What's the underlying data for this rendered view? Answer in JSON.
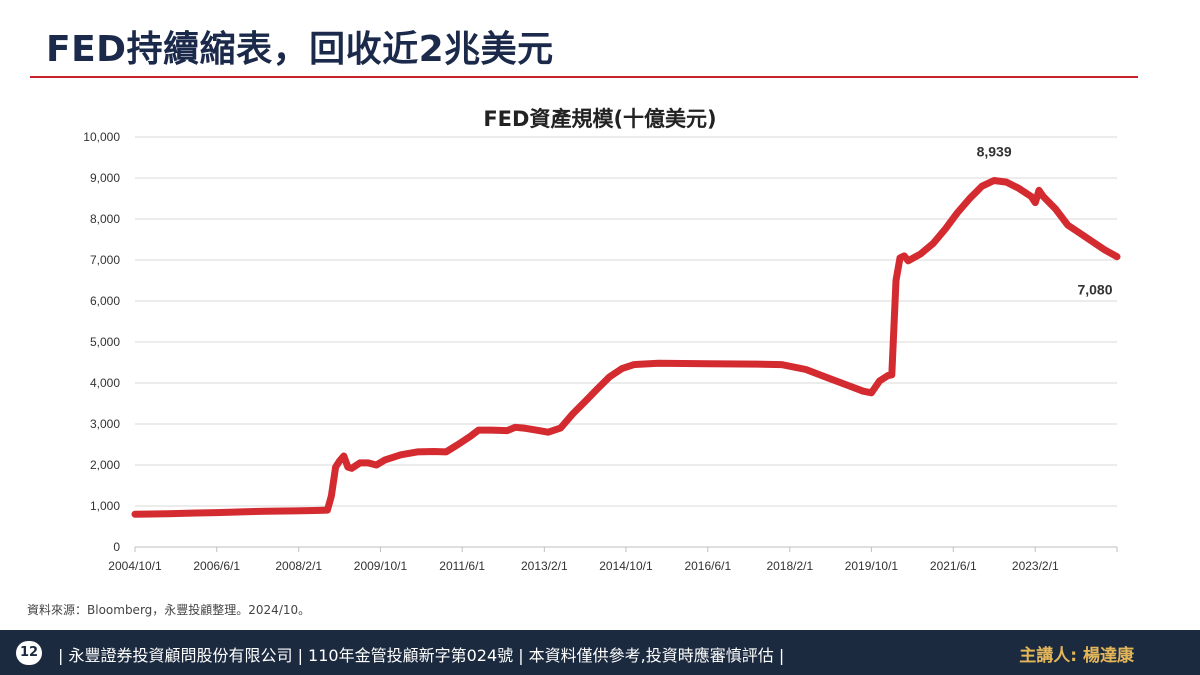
{
  "slide": {
    "title": "FED持續縮表，回收近2兆美元",
    "source_note": "資料來源：Bloomberg，永豐投顧整理。2024/10。",
    "page_number": "12",
    "footer_text": "| 永豐證券投資顧問股份有限公司 | 110年金管投顧新字第024號 | 本資料僅供參考,投資時應審慎評估 |",
    "speaker": "主講人: 楊達康"
  },
  "colors": {
    "accent_red": "#c8232c",
    "line_red": "#d42b30",
    "navy": "#1b2a3f",
    "speaker_gold": "#e3b65a"
  },
  "chart_data": {
    "type": "line",
    "title": "FED資產規模(十億美元)",
    "xlabel": "",
    "ylabel": "",
    "ylim": [
      0,
      10000
    ],
    "yticks": [
      0,
      1000,
      2000,
      3000,
      4000,
      5000,
      6000,
      7000,
      8000,
      9000,
      10000
    ],
    "ytick_labels": [
      "0",
      "1,000",
      "2,000",
      "3,000",
      "4,000",
      "5,000",
      "6,000",
      "7,000",
      "8,000",
      "9,000",
      "10,000"
    ],
    "xlim": [
      "2004-10-01",
      "2024-10-01"
    ],
    "xticks": [
      "2004-10-01",
      "2006-06-01",
      "2008-02-01",
      "2009-10-01",
      "2011-06-01",
      "2013-02-01",
      "2014-10-01",
      "2016-06-01",
      "2018-02-01",
      "2019-10-01",
      "2021-06-01",
      "2023-02-01"
    ],
    "xtick_labels": [
      "2004/10/1",
      "2006/6/1",
      "2008/2/1",
      "2009/10/1",
      "2011/6/1",
      "2013/2/1",
      "2014/10/1",
      "2016/6/1",
      "2018/2/1",
      "2019/10/1",
      "2021/6/1",
      "2023/2/1"
    ],
    "grid": true,
    "series": [
      {
        "points": [
          [
            "2004-10-01",
            800
          ],
          [
            "2005-06-01",
            810
          ],
          [
            "2006-01-01",
            830
          ],
          [
            "2006-06-01",
            840
          ],
          [
            "2007-01-01",
            860
          ],
          [
            "2007-06-01",
            870
          ],
          [
            "2008-01-01",
            880
          ],
          [
            "2008-06-01",
            890
          ],
          [
            "2008-09-01",
            900
          ],
          [
            "2008-10-01",
            1250
          ],
          [
            "2008-11-01",
            1950
          ],
          [
            "2008-12-01",
            2100
          ],
          [
            "2009-01-01",
            2220
          ],
          [
            "2009-02-01",
            1950
          ],
          [
            "2009-03-01",
            1920
          ],
          [
            "2009-05-01",
            2050
          ],
          [
            "2009-07-01",
            2050
          ],
          [
            "2009-09-01",
            2000
          ],
          [
            "2009-11-01",
            2120
          ],
          [
            "2010-03-01",
            2250
          ],
          [
            "2010-07-01",
            2320
          ],
          [
            "2010-11-01",
            2330
          ],
          [
            "2011-02-01",
            2320
          ],
          [
            "2011-05-01",
            2500
          ],
          [
            "2011-08-01",
            2700
          ],
          [
            "2011-10-01",
            2850
          ],
          [
            "2012-01-01",
            2850
          ],
          [
            "2012-05-01",
            2840
          ],
          [
            "2012-07-01",
            2920
          ],
          [
            "2012-09-01",
            2900
          ],
          [
            "2012-12-01",
            2850
          ],
          [
            "2013-03-01",
            2800
          ],
          [
            "2013-06-01",
            2900
          ],
          [
            "2013-09-01",
            3250
          ],
          [
            "2013-12-01",
            3550
          ],
          [
            "2014-03-01",
            3850
          ],
          [
            "2014-06-01",
            4150
          ],
          [
            "2014-09-01",
            4350
          ],
          [
            "2014-12-01",
            4450
          ],
          [
            "2015-06-01",
            4480
          ],
          [
            "2016-06-01",
            4470
          ],
          [
            "2017-06-01",
            4460
          ],
          [
            "2017-12-01",
            4450
          ],
          [
            "2018-06-01",
            4330
          ],
          [
            "2018-12-01",
            4100
          ],
          [
            "2019-04-01",
            3950
          ],
          [
            "2019-08-01",
            3800
          ],
          [
            "2019-10-01",
            3760
          ],
          [
            "2019-12-01",
            4050
          ],
          [
            "2020-02-01",
            4180
          ],
          [
            "2020-03-01",
            4200
          ],
          [
            "2020-04-01",
            6500
          ],
          [
            "2020-05-01",
            7050
          ],
          [
            "2020-06-01",
            7100
          ],
          [
            "2020-07-01",
            6980
          ],
          [
            "2020-10-01",
            7150
          ],
          [
            "2021-01-01",
            7400
          ],
          [
            "2021-04-01",
            7750
          ],
          [
            "2021-07-01",
            8150
          ],
          [
            "2021-10-01",
            8500
          ],
          [
            "2022-01-01",
            8800
          ],
          [
            "2022-04-01",
            8939
          ],
          [
            "2022-07-01",
            8900
          ],
          [
            "2022-10-01",
            8750
          ],
          [
            "2023-01-01",
            8550
          ],
          [
            "2023-02-01",
            8400
          ],
          [
            "2023-03-01",
            8700
          ],
          [
            "2023-04-01",
            8550
          ],
          [
            "2023-07-01",
            8250
          ],
          [
            "2023-10-01",
            7850
          ],
          [
            "2024-01-01",
            7650
          ],
          [
            "2024-04-01",
            7450
          ],
          [
            "2024-07-01",
            7250
          ],
          [
            "2024-10-01",
            7080
          ]
        ]
      }
    ],
    "annotations": [
      {
        "text": "8,939",
        "x": "2022-04-01",
        "value": 8939
      },
      {
        "text": "7,080",
        "x": "2024-10-01",
        "value": 7080
      }
    ]
  }
}
